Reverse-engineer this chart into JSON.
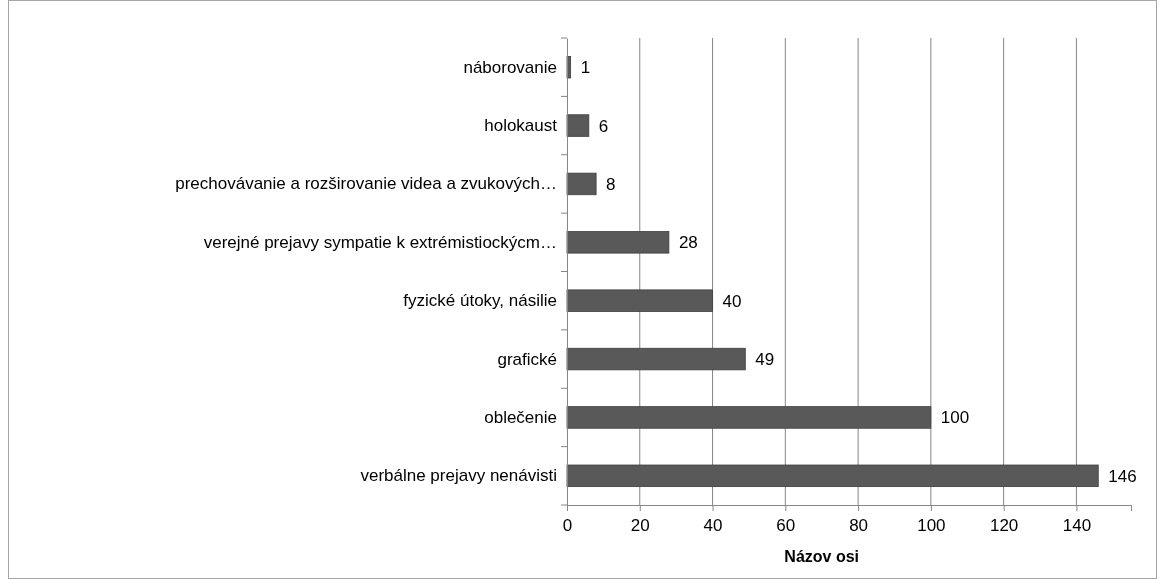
{
  "chart_data": {
    "type": "bar",
    "orientation": "horizontal",
    "xlabel": "Názov osi",
    "categories": [
      "náborovanie",
      "holokaust",
      "prechovávanie a rozširovanie videa a zvukových…",
      "verejné prejavy sympatie k  extrémistiockýcm…",
      "fyzické útoky, násilie",
      "grafické",
      "oblečenie",
      "verbálne prejavy nenávisti"
    ],
    "values": [
      1,
      6,
      8,
      28,
      40,
      49,
      100,
      146
    ],
    "color": "#595959",
    "xlim": [
      0,
      155
    ],
    "xticks": [
      0,
      20,
      40,
      60,
      80,
      100,
      120,
      140
    ],
    "grid": "x",
    "data_labels": true
  }
}
